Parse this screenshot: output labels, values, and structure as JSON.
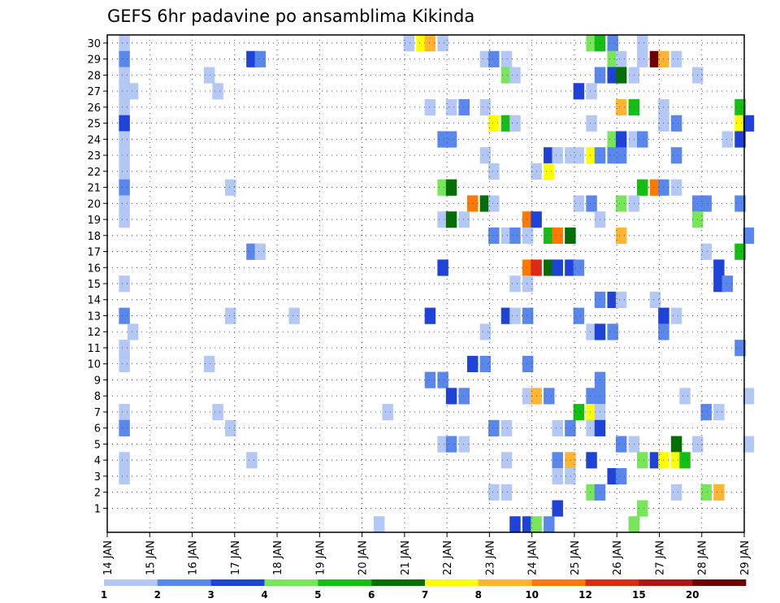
{
  "chart_data": {
    "type": "heatmap",
    "title": "GEFS 6hr padavine po ansamblima Kikinda",
    "xlabel": "",
    "ylabel": "",
    "x_tick_labels": [
      "14 JAN",
      "15 JAN",
      "16 JAN",
      "17 JAN",
      "18 JAN",
      "19 JAN",
      "20 JAN",
      "21 JAN",
      "22 JAN",
      "23 JAN",
      "24 JAN",
      "25 JAN",
      "26 JAN",
      "27 JAN",
      "28 JAN",
      "29 JAN"
    ],
    "y_tick_labels": [
      "1",
      "2",
      "3",
      "4",
      "5",
      "6",
      "7",
      "8",
      "9",
      "10",
      "11",
      "12",
      "13",
      "14",
      "15",
      "16",
      "17",
      "18",
      "19",
      "20",
      "21",
      "22",
      "23",
      "24",
      "25",
      "26",
      "27",
      "28",
      "29",
      "30"
    ],
    "grid": true,
    "legend_position": "bottom",
    "legend_labels": [
      "1",
      "2",
      "3",
      "4",
      "5",
      "6",
      "7",
      "8",
      "10",
      "12",
      "15",
      "20"
    ],
    "legend_colors": [
      "#b4c8f5",
      "#5a87ec",
      "#1f43d8",
      "#78e65a",
      "#14be14",
      "#056e05",
      "#ffff00",
      "#ffb432",
      "#ff7800",
      "#e12814",
      "#b41414",
      "#6e0000"
    ],
    "cells": [
      [
        30,
        14.4,
        1
      ],
      [
        30,
        21.1,
        1
      ],
      [
        30,
        21.4,
        7
      ],
      [
        30,
        21.6,
        8
      ],
      [
        30,
        21.9,
        1
      ],
      [
        30,
        25.4,
        4
      ],
      [
        30,
        25.6,
        5
      ],
      [
        30,
        25.9,
        2
      ],
      [
        30,
        26.6,
        1
      ],
      [
        29,
        14.4,
        2
      ],
      [
        29,
        17.4,
        3
      ],
      [
        29,
        17.6,
        2
      ],
      [
        29,
        22.9,
        1
      ],
      [
        29,
        23.1,
        2
      ],
      [
        29,
        23.4,
        1
      ],
      [
        29,
        25.9,
        4
      ],
      [
        29,
        26.1,
        1
      ],
      [
        29,
        26.6,
        1
      ],
      [
        29,
        26.9,
        12
      ],
      [
        29,
        27.1,
        8
      ],
      [
        29,
        27.4,
        1
      ],
      [
        28,
        14.4,
        1
      ],
      [
        28,
        16.4,
        1
      ],
      [
        28,
        23.4,
        4
      ],
      [
        28,
        23.6,
        1
      ],
      [
        28,
        25.6,
        2
      ],
      [
        28,
        25.9,
        3
      ],
      [
        28,
        26.1,
        6
      ],
      [
        28,
        26.4,
        1
      ],
      [
        28,
        27.9,
        1
      ],
      [
        27,
        14.4,
        1
      ],
      [
        27,
        14.6,
        1
      ],
      [
        27,
        16.6,
        1
      ],
      [
        27,
        25.1,
        3
      ],
      [
        27,
        25.4,
        1
      ],
      [
        26,
        14.4,
        1
      ],
      [
        26,
        21.6,
        1
      ],
      [
        26,
        22.1,
        1
      ],
      [
        26,
        22.4,
        2
      ],
      [
        26,
        22.9,
        1
      ],
      [
        26,
        26.1,
        8
      ],
      [
        26,
        26.4,
        5
      ],
      [
        26,
        27.1,
        1
      ],
      [
        26,
        28.9,
        5
      ],
      [
        25,
        14.4,
        3
      ],
      [
        25,
        23.1,
        7
      ],
      [
        25,
        23.4,
        5
      ],
      [
        25,
        23.6,
        1
      ],
      [
        25,
        25.4,
        1
      ],
      [
        25,
        27.1,
        1
      ],
      [
        25,
        27.4,
        2
      ],
      [
        25,
        28.9,
        7
      ],
      [
        25,
        29.1,
        3
      ],
      [
        24,
        14.4,
        1
      ],
      [
        24,
        21.9,
        2
      ],
      [
        24,
        22.1,
        2
      ],
      [
        24,
        25.9,
        4
      ],
      [
        24,
        26.1,
        3
      ],
      [
        24,
        26.4,
        1
      ],
      [
        24,
        26.6,
        2
      ],
      [
        24,
        28.6,
        1
      ],
      [
        24,
        28.9,
        3
      ],
      [
        23,
        14.4,
        1
      ],
      [
        23,
        22.9,
        1
      ],
      [
        23,
        24.4,
        3
      ],
      [
        23,
        24.6,
        1
      ],
      [
        23,
        24.9,
        1
      ],
      [
        23,
        25.1,
        1
      ],
      [
        23,
        25.4,
        7
      ],
      [
        23,
        25.6,
        2
      ],
      [
        23,
        25.9,
        2
      ],
      [
        23,
        26.1,
        2
      ],
      [
        23,
        27.4,
        2
      ],
      [
        22,
        14.4,
        1
      ],
      [
        22,
        23.1,
        1
      ],
      [
        22,
        24.1,
        1
      ],
      [
        22,
        24.4,
        7
      ],
      [
        21,
        14.4,
        2
      ],
      [
        21,
        16.9,
        1
      ],
      [
        21,
        21.9,
        4
      ],
      [
        21,
        22.1,
        6
      ],
      [
        21,
        26.6,
        5
      ],
      [
        21,
        26.9,
        9
      ],
      [
        21,
        27.1,
        2
      ],
      [
        21,
        27.4,
        1
      ],
      [
        20,
        14.4,
        1
      ],
      [
        20,
        22.6,
        9
      ],
      [
        20,
        22.9,
        6
      ],
      [
        20,
        23.1,
        1
      ],
      [
        20,
        25.1,
        1
      ],
      [
        20,
        25.4,
        2
      ],
      [
        20,
        26.1,
        4
      ],
      [
        20,
        26.4,
        1
      ],
      [
        20,
        27.9,
        2
      ],
      [
        20,
        28.1,
        2
      ],
      [
        20,
        28.9,
        2
      ],
      [
        19,
        14.4,
        1
      ],
      [
        19,
        21.9,
        1
      ],
      [
        19,
        22.1,
        6
      ],
      [
        19,
        22.4,
        1
      ],
      [
        19,
        23.9,
        9
      ],
      [
        19,
        24.1,
        3
      ],
      [
        19,
        25.6,
        1
      ],
      [
        19,
        27.9,
        4
      ],
      [
        18,
        23.1,
        2
      ],
      [
        18,
        23.4,
        1
      ],
      [
        18,
        23.6,
        2
      ],
      [
        18,
        23.9,
        1
      ],
      [
        18,
        24.4,
        5
      ],
      [
        18,
        24.6,
        9
      ],
      [
        18,
        24.9,
        6
      ],
      [
        18,
        26.1,
        8
      ],
      [
        18,
        29.1,
        2
      ],
      [
        17,
        17.4,
        2
      ],
      [
        17,
        17.6,
        1
      ],
      [
        17,
        28.1,
        1
      ],
      [
        17,
        28.9,
        5
      ],
      [
        16,
        21.9,
        3
      ],
      [
        16,
        23.9,
        9
      ],
      [
        16,
        24.1,
        10
      ],
      [
        16,
        24.4,
        6
      ],
      [
        16,
        24.6,
        3
      ],
      [
        16,
        24.9,
        3
      ],
      [
        16,
        25.1,
        2
      ],
      [
        16,
        28.4,
        3
      ],
      [
        15,
        14.4,
        1
      ],
      [
        15,
        23.6,
        1
      ],
      [
        15,
        23.9,
        1
      ],
      [
        15,
        28.4,
        3
      ],
      [
        15,
        28.6,
        2
      ],
      [
        14,
        25.6,
        2
      ],
      [
        14,
        25.9,
        3
      ],
      [
        14,
        26.1,
        1
      ],
      [
        14,
        26.9,
        1
      ],
      [
        13,
        14.4,
        2
      ],
      [
        13,
        16.9,
        1
      ],
      [
        13,
        18.4,
        1
      ],
      [
        13,
        21.6,
        3
      ],
      [
        13,
        23.4,
        3
      ],
      [
        13,
        23.6,
        1
      ],
      [
        13,
        23.9,
        2
      ],
      [
        13,
        25.1,
        2
      ],
      [
        13,
        27.1,
        3
      ],
      [
        13,
        27.4,
        1
      ],
      [
        12,
        14.6,
        1
      ],
      [
        12,
        22.9,
        1
      ],
      [
        12,
        25.4,
        1
      ],
      [
        12,
        25.6,
        3
      ],
      [
        12,
        25.9,
        2
      ],
      [
        12,
        27.1,
        2
      ],
      [
        11,
        14.4,
        1
      ],
      [
        11,
        28.9,
        2
      ],
      [
        10,
        14.4,
        1
      ],
      [
        10,
        16.4,
        1
      ],
      [
        10,
        22.6,
        3
      ],
      [
        10,
        22.9,
        2
      ],
      [
        10,
        23.9,
        2
      ],
      [
        9,
        21.6,
        2
      ],
      [
        9,
        21.9,
        2
      ],
      [
        9,
        25.6,
        2
      ],
      [
        8,
        22.1,
        3
      ],
      [
        8,
        22.4,
        2
      ],
      [
        8,
        23.9,
        1
      ],
      [
        8,
        24.1,
        8
      ],
      [
        8,
        24.4,
        2
      ],
      [
        8,
        25.4,
        2
      ],
      [
        8,
        25.6,
        2
      ],
      [
        8,
        27.6,
        1
      ],
      [
        8,
        29.1,
        1
      ],
      [
        7,
        14.4,
        1
      ],
      [
        7,
        16.6,
        1
      ],
      [
        7,
        20.6,
        1
      ],
      [
        7,
        25.1,
        5
      ],
      [
        7,
        25.4,
        7
      ],
      [
        7,
        25.6,
        1
      ],
      [
        7,
        28.1,
        2
      ],
      [
        7,
        28.4,
        1
      ],
      [
        6,
        14.4,
        2
      ],
      [
        6,
        16.9,
        1
      ],
      [
        6,
        23.1,
        2
      ],
      [
        6,
        23.4,
        1
      ],
      [
        6,
        24.6,
        1
      ],
      [
        6,
        24.9,
        2
      ],
      [
        6,
        25.4,
        1
      ],
      [
        6,
        25.6,
        3
      ],
      [
        5,
        21.9,
        1
      ],
      [
        5,
        22.1,
        2
      ],
      [
        5,
        22.4,
        1
      ],
      [
        5,
        26.1,
        2
      ],
      [
        5,
        26.4,
        1
      ],
      [
        5,
        27.4,
        6
      ],
      [
        5,
        27.9,
        1
      ],
      [
        5,
        29.1,
        1
      ],
      [
        4,
        14.4,
        1
      ],
      [
        4,
        17.4,
        1
      ],
      [
        4,
        23.4,
        1
      ],
      [
        4,
        24.6,
        2
      ],
      [
        4,
        24.9,
        8
      ],
      [
        4,
        25.4,
        3
      ],
      [
        4,
        26.6,
        4
      ],
      [
        4,
        26.9,
        3
      ],
      [
        4,
        27.1,
        7
      ],
      [
        4,
        27.4,
        7
      ],
      [
        4,
        27.6,
        5
      ],
      [
        3,
        14.4,
        1
      ],
      [
        3,
        24.6,
        1
      ],
      [
        3,
        24.9,
        1
      ],
      [
        3,
        25.9,
        3
      ],
      [
        3,
        26.1,
        2
      ],
      [
        2,
        23.1,
        1
      ],
      [
        2,
        23.4,
        1
      ],
      [
        2,
        25.4,
        4
      ],
      [
        2,
        25.6,
        2
      ],
      [
        2,
        27.4,
        1
      ],
      [
        2,
        28.1,
        4
      ],
      [
        2,
        28.4,
        8
      ],
      [
        1,
        24.6,
        3
      ],
      [
        1,
        26.6,
        4
      ],
      [
        0,
        20.4,
        1
      ],
      [
        0,
        23.6,
        3
      ],
      [
        0,
        23.9,
        3
      ],
      [
        0,
        24.1,
        4
      ],
      [
        0,
        24.4,
        2
      ],
      [
        0,
        26.4,
        4
      ]
    ]
  }
}
